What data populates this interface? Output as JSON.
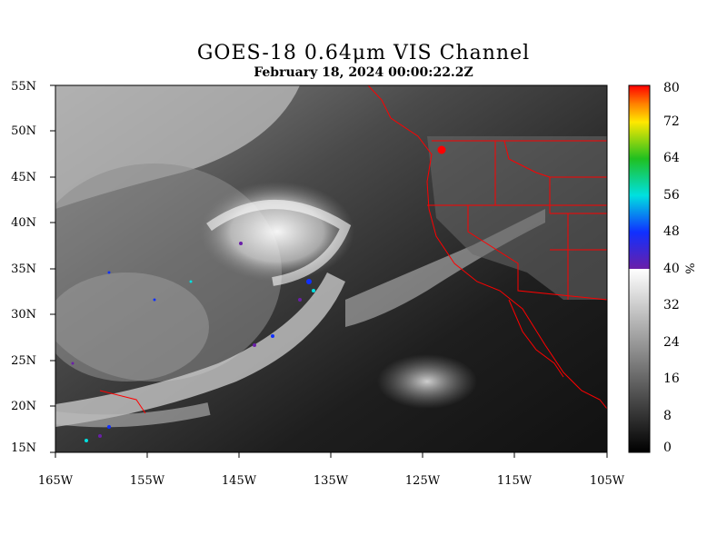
{
  "title": "GOES-18  0.64μm VIS Channel",
  "subtitle": "February 18,  2024 00:00:22.2Z",
  "lat_labels": [
    "55N",
    "50N",
    "45N",
    "40N",
    "35N",
    "30N",
    "25N",
    "20N",
    "15N"
  ],
  "lon_labels": [
    "165W",
    "155W",
    "145W",
    "135W",
    "125W",
    "115W",
    "105W"
  ],
  "colorbar": {
    "unit": "%",
    "ticks": [
      "80",
      "72",
      "64",
      "56",
      "48",
      "40",
      "32",
      "24",
      "16",
      "8",
      "0"
    ],
    "range": [
      0,
      80
    ],
    "gray_range": [
      0,
      40
    ],
    "color_range": [
      40,
      80
    ],
    "colors": {
      "low": "#000000",
      "mid": "#ffffff",
      "violet": "#6a1fa8",
      "blue": "#1030ff",
      "cyan": "#00e0e0",
      "green": "#20c020",
      "yellow": "#ffe800",
      "orange": "#ff8000",
      "red": "#ff0000"
    }
  },
  "map": {
    "lon_range": [
      -165,
      -105
    ],
    "lat_range": [
      15,
      55
    ],
    "border_color": "#ff0000"
  }
}
